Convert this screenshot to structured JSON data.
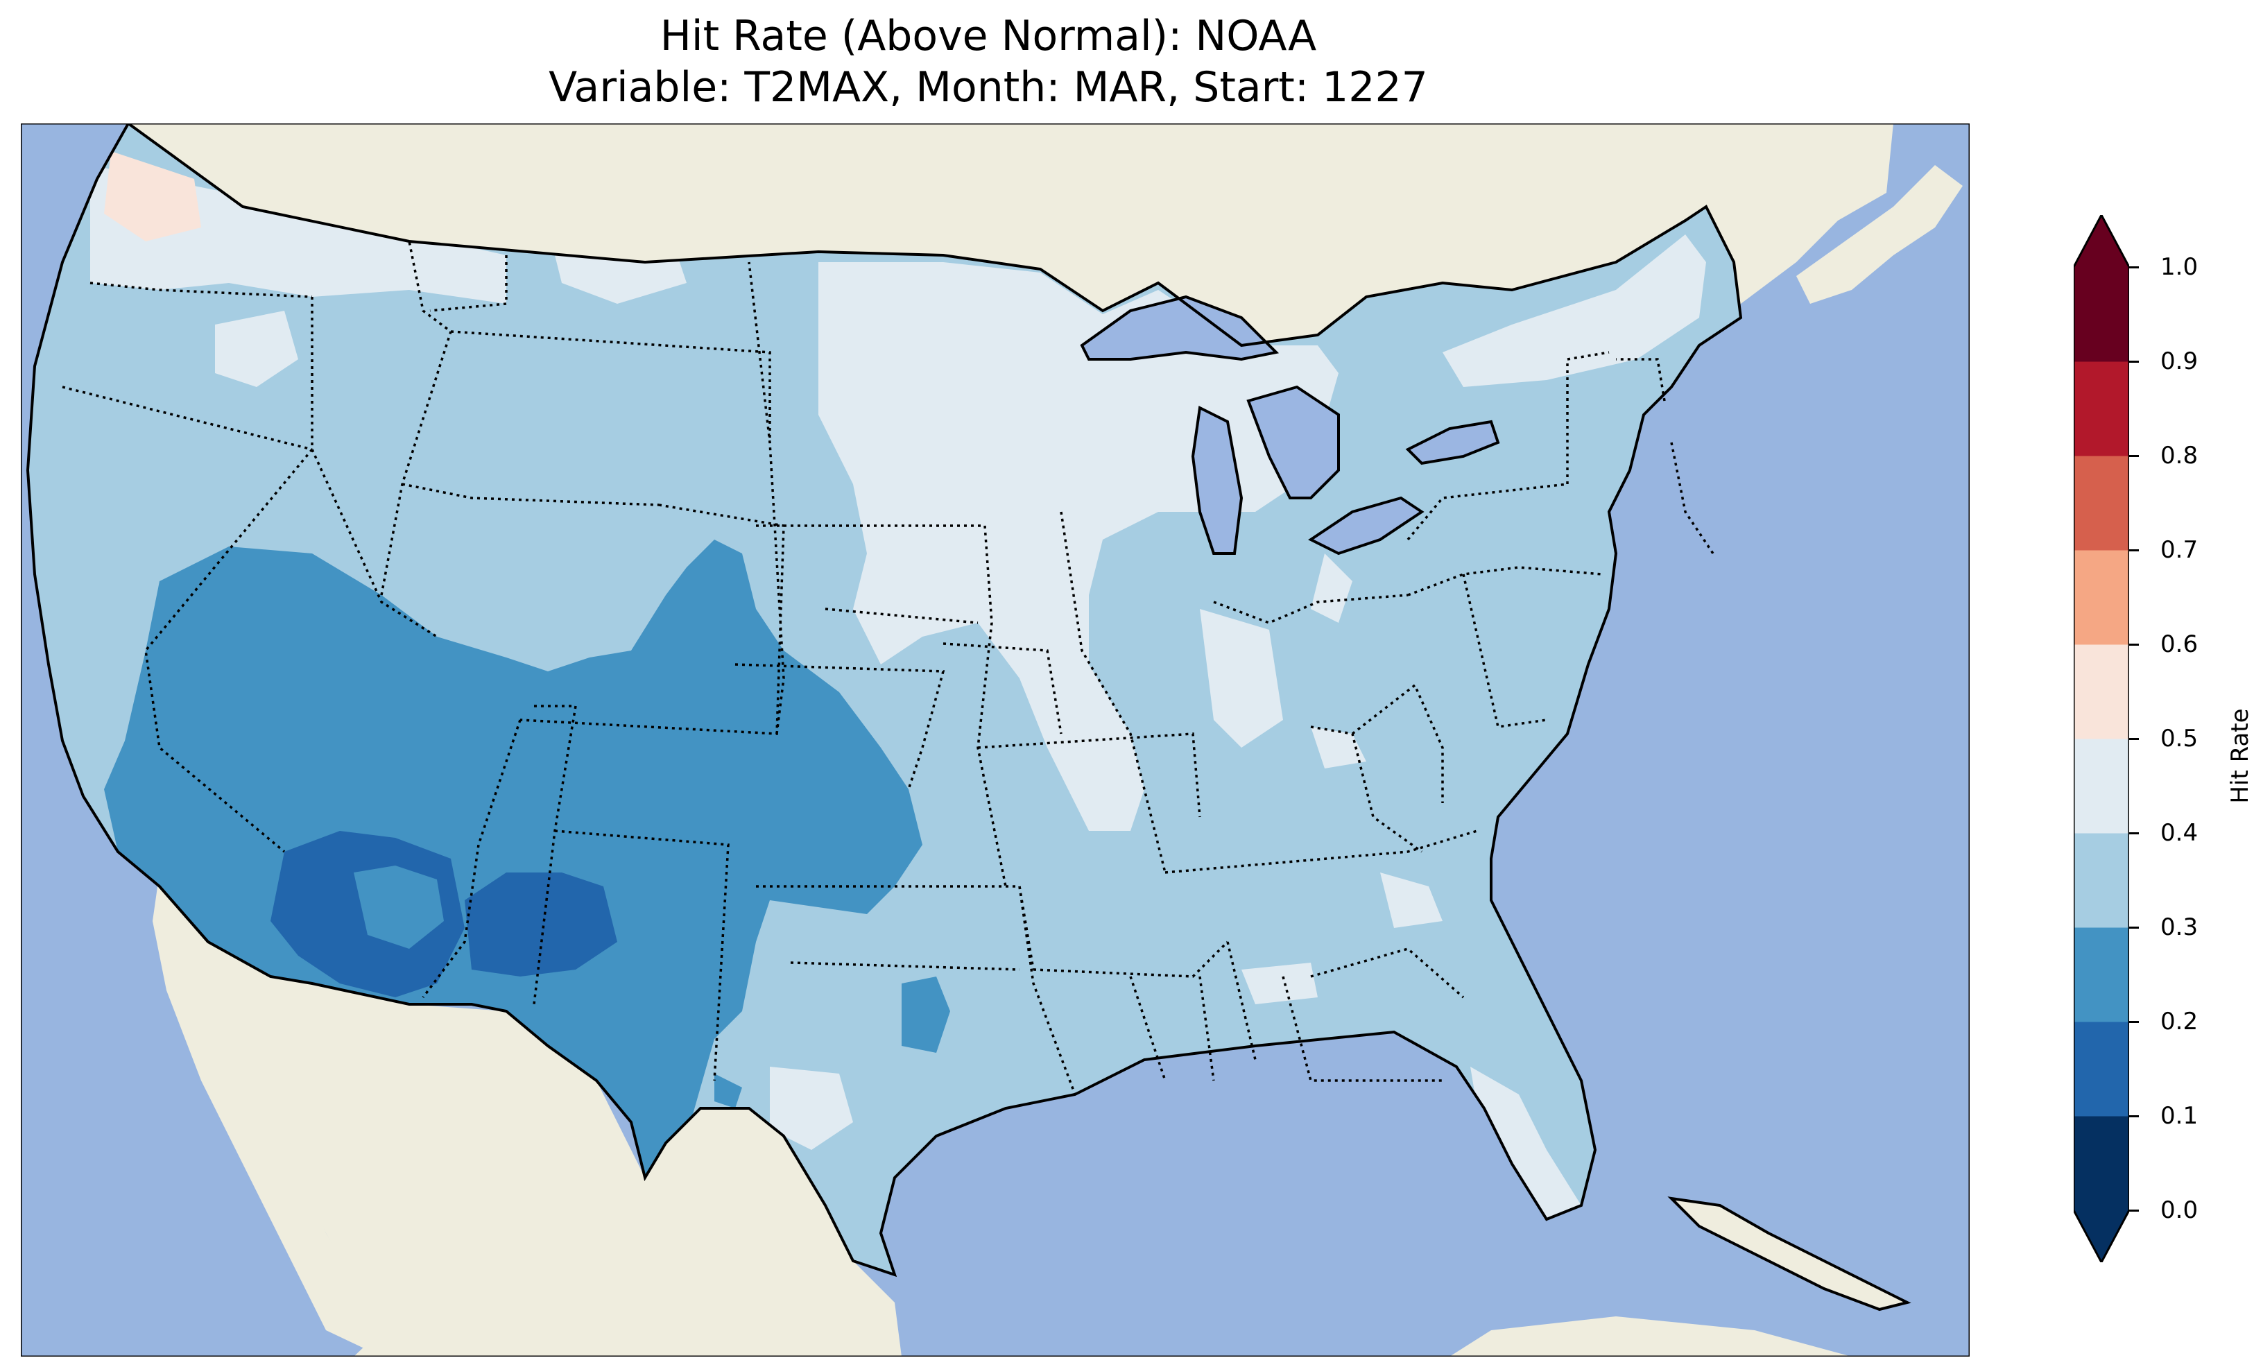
{
  "title": {
    "line1": "Hit Rate (Above Normal): NOAA",
    "line2": "Variable: T2MAX, Month: MAR, Start: 1227"
  },
  "colors": {
    "ocean": "#98b5e0",
    "land": "#efedde",
    "lake": "#9bb6e2"
  },
  "colorbar": {
    "label": "Hit Rate",
    "ticks": [
      "0.0",
      "0.1",
      "0.2",
      "0.3",
      "0.4",
      "0.5",
      "0.6",
      "0.7",
      "0.8",
      "0.9",
      "1.0"
    ],
    "bins": [
      "#053061",
      "#2266ac",
      "#4393c3",
      "#a6cde2",
      "#e1ebf2",
      "#f9e4da",
      "#f5a784",
      "#d6604d",
      "#b2182b",
      "#67001f"
    ],
    "extend": "both"
  },
  "map_regions": {
    "base_class": "0.3-0.4",
    "northern_tier_class": "0.4-0.5",
    "southwest_class": "0.2-0.3",
    "core_southwest_class": "0.1-0.2",
    "northwest_corner_class": "0.5-0.6"
  }
}
